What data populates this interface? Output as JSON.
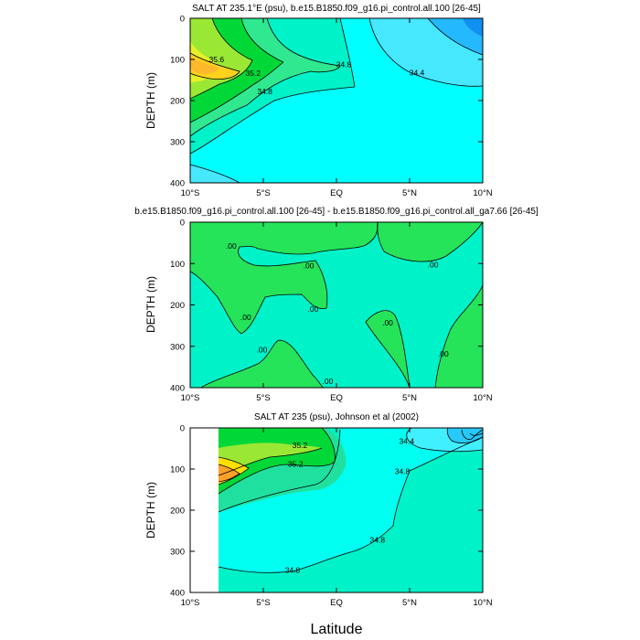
{
  "figure": {
    "x_axis_label": "Latitude"
  },
  "chart_data": [
    {
      "type": "contour",
      "title": "SALT AT 235.1°E (psu), b.e15.B1850.f09_g16.pi_control.all.100 [26-45]",
      "xlabel": "",
      "ylabel": "DEPTH (m)",
      "xlim": [
        -10,
        10
      ],
      "ylim": [
        400,
        0
      ],
      "x_ticks": [
        "10°S",
        "5°S",
        "EQ",
        "5°N",
        "10°N"
      ],
      "y_ticks": [
        "0",
        "100",
        "200",
        "300",
        "400"
      ],
      "contour_labels": [
        {
          "text": "35.6",
          "lat": -8.2,
          "depth": 100
        },
        {
          "text": "35.2",
          "lat": -5.7,
          "depth": 133
        },
        {
          "text": "34.8",
          "lat": -4.9,
          "depth": 178
        },
        {
          "text": "34.8",
          "lat": 0.5,
          "depth": 112
        },
        {
          "text": "34.4",
          "lat": 5.5,
          "depth": 132
        }
      ]
    },
    {
      "type": "contour",
      "title": "b.e15.B1850.f09_g16.pi_control.all.100 [26-45] - b.e15.B1850.f09_g16.pi_control.all_ga7.66 [26-45]",
      "xlabel": "",
      "ylabel": "DEPTH (m)",
      "xlim": [
        -10,
        10
      ],
      "ylim": [
        400,
        0
      ],
      "x_ticks": [
        "10°S",
        "5°S",
        "EQ",
        "5°N",
        "10°N"
      ],
      "y_ticks": [
        "0",
        "100",
        "200",
        "300",
        "400"
      ],
      "contour_labels": [
        {
          "text": ".00",
          "lat": -7.2,
          "depth": 58
        },
        {
          "text": ".00",
          "lat": -1.9,
          "depth": 105
        },
        {
          "text": ".00",
          "lat": -6.2,
          "depth": 230
        },
        {
          "text": ".00",
          "lat": -1.6,
          "depth": 210
        },
        {
          "text": ".00",
          "lat": -5.1,
          "depth": 308
        },
        {
          "text": ".00",
          "lat": -0.6,
          "depth": 385
        },
        {
          "text": ".00",
          "lat": 3.5,
          "depth": 243
        },
        {
          "text": ".00",
          "lat": 6.6,
          "depth": 103
        },
        {
          "text": ".00",
          "lat": 7.3,
          "depth": 318
        }
      ]
    },
    {
      "type": "contour",
      "title": "SALT AT 235 (psu), Johnson et al (2002)",
      "xlabel": "",
      "ylabel": "DEPTH (m)",
      "xlim": [
        -10,
        10
      ],
      "ylim": [
        400,
        0
      ],
      "x_ticks": [
        "10°S",
        "5°S",
        "EQ",
        "5°N",
        "10°N"
      ],
      "y_ticks": [
        "0",
        "100",
        "200",
        "300",
        "400"
      ],
      "contour_labels": [
        {
          "text": "35.2",
          "lat": -2.5,
          "depth": 42
        },
        {
          "text": "35.2",
          "lat": -2.8,
          "depth": 88
        },
        {
          "text": "34.4",
          "lat": 4.8,
          "depth": 32
        },
        {
          "text": "34.8",
          "lat": 4.5,
          "depth": 105
        },
        {
          "text": "34.8",
          "lat": 2.8,
          "depth": 272
        },
        {
          "text": "34.8",
          "lat": -3.0,
          "depth": 345
        }
      ]
    }
  ]
}
